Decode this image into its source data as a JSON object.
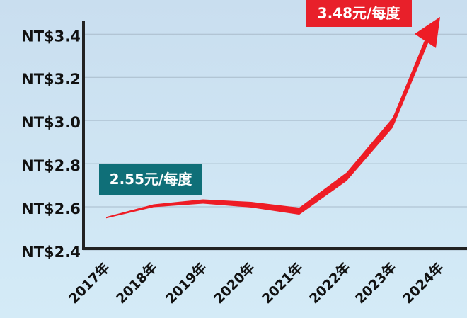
{
  "chart_data": {
    "type": "line",
    "categories": [
      "2017年",
      "2018年",
      "2019年",
      "2020年",
      "2021年",
      "2022年",
      "2023年",
      "2024年"
    ],
    "values": [
      2.55,
      2.605,
      2.625,
      2.61,
      2.58,
      2.74,
      2.99,
      3.48
    ],
    "color": "#ee1c25",
    "ylim": [
      2.4,
      3.46
    ],
    "yticks": [
      {
        "value": 2.4,
        "label": "NT$2.4"
      },
      {
        "value": 2.6,
        "label": "NT$2.6"
      },
      {
        "value": 2.8,
        "label": "NT$2.8"
      },
      {
        "value": 3.0,
        "label": "NT$3.0"
      },
      {
        "value": 3.2,
        "label": "NT$3.2"
      },
      {
        "value": 3.4,
        "label": "NT$3.4"
      }
    ],
    "grid": true,
    "annotations": [
      "2.55元/每度",
      "3.48元/每度"
    ]
  }
}
